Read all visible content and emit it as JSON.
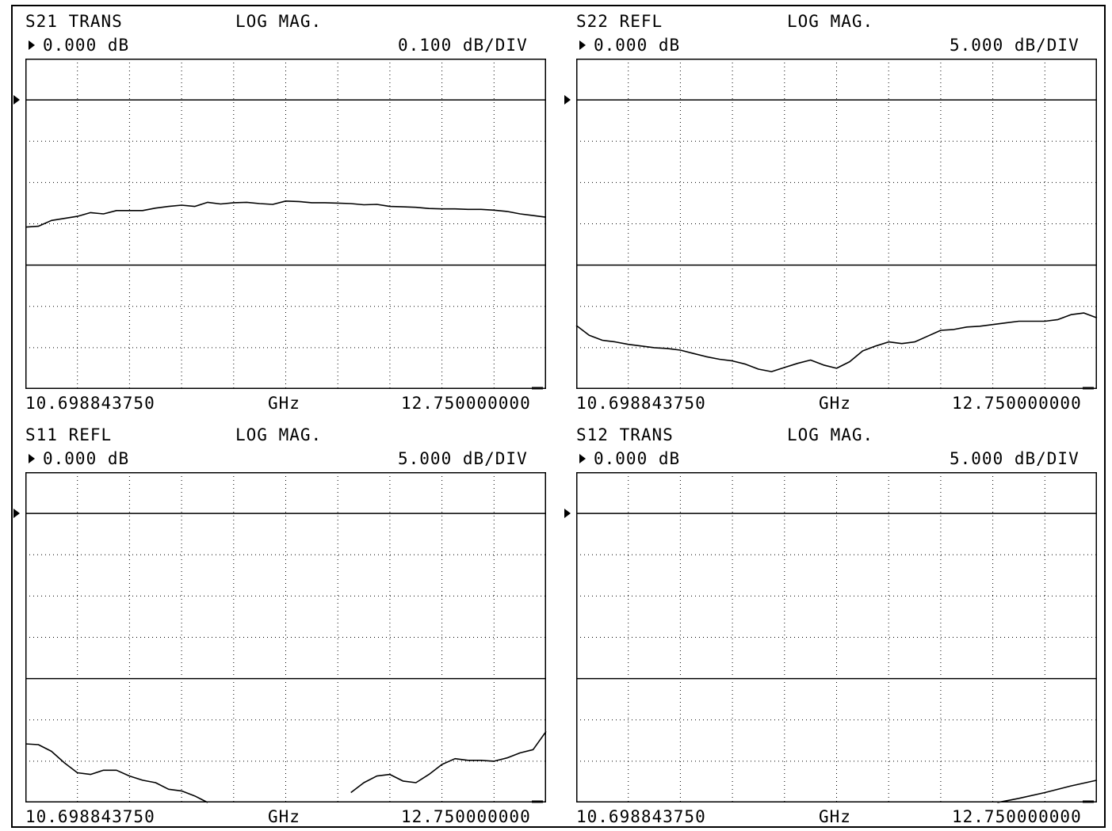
{
  "colors": {
    "trace": "#000000",
    "background": "#ffffff",
    "grid": "#000000"
  },
  "panels": [
    {
      "param": "S21 TRANS",
      "format": "LOG MAG.",
      "ref_value": "0.000 dB",
      "scale": "0.100 dB/DIV",
      "start": "10.698843750",
      "unit": "GHz",
      "stop": "12.750000000"
    },
    {
      "param": "S22 REFL",
      "format": "LOG MAG.",
      "ref_value": "0.000 dB",
      "scale": "5.000 dB/DIV",
      "start": "10.698843750",
      "unit": "GHz",
      "stop": "12.750000000"
    },
    {
      "param": "S11 REFL",
      "format": "LOG MAG.",
      "ref_value": "0.000 dB",
      "scale": "5.000 dB/DIV",
      "start": "10.698843750",
      "unit": "GHz",
      "stop": "12.750000000"
    },
    {
      "param": "S12 TRANS",
      "format": "LOG MAG.",
      "ref_value": "0.000 dB",
      "scale": "5.000 dB/DIV",
      "start": "10.698843750",
      "unit": "GHz",
      "stop": "12.750000000"
    }
  ],
  "chart_data": [
    {
      "type": "line",
      "title": "S21 TRANS LOG MAG.",
      "xlabel": "GHz",
      "ylabel": "",
      "xlim": [
        10.69884375,
        12.75
      ],
      "ylim": [
        -0.7,
        0.1
      ],
      "grid": true,
      "x": [
        10.6988,
        10.7502,
        10.8015,
        10.8528,
        10.9041,
        10.9554,
        11.0066,
        11.0579,
        11.1092,
        11.1605,
        11.2117,
        11.263,
        11.3143,
        11.3656,
        11.4169,
        11.4682,
        11.5194,
        11.5707,
        11.622,
        11.6733,
        11.7245,
        11.7758,
        11.8271,
        11.8784,
        11.9297,
        11.981,
        12.0322,
        12.0835,
        12.1348,
        12.1861,
        12.2373,
        12.2886,
        12.3399,
        12.3912,
        12.4425,
        12.4938,
        12.545,
        12.5963,
        12.6476,
        12.6989,
        12.75
      ],
      "series": [
        {
          "values": [
            -0.308,
            -0.306,
            -0.292,
            -0.287,
            -0.282,
            -0.273,
            -0.276,
            -0.268,
            -0.268,
            -0.268,
            -0.262,
            -0.258,
            -0.255,
            -0.258,
            -0.248,
            -0.252,
            -0.249,
            -0.248,
            -0.251,
            -0.253,
            -0.245,
            -0.246,
            -0.249,
            -0.249,
            -0.25,
            -0.251,
            -0.254,
            -0.253,
            -0.258,
            -0.259,
            -0.26,
            -0.263,
            -0.264,
            -0.264,
            -0.265,
            -0.265,
            -0.267,
            -0.27,
            -0.276,
            -0.28,
            -0.284
          ]
        }
      ]
    },
    {
      "type": "line",
      "title": "S22 REFL LOG MAG.",
      "xlabel": "GHz",
      "ylabel": "",
      "xlim": [
        10.69884375,
        12.75
      ],
      "ylim": [
        -35,
        5
      ],
      "grid": true,
      "x": [
        10.6988,
        10.7502,
        10.8015,
        10.8528,
        10.9041,
        10.9554,
        11.0066,
        11.0579,
        11.1092,
        11.1605,
        11.2117,
        11.263,
        11.3143,
        11.3656,
        11.4169,
        11.4682,
        11.5194,
        11.5707,
        11.622,
        11.6733,
        11.7245,
        11.7758,
        11.8271,
        11.8784,
        11.9297,
        11.981,
        12.0322,
        12.0835,
        12.1348,
        12.1861,
        12.2373,
        12.2886,
        12.3399,
        12.3912,
        12.4425,
        12.4938,
        12.545,
        12.5963,
        12.6476,
        12.6989,
        12.75
      ],
      "series": [
        {
          "values": [
            -27.3,
            -28.5,
            -29.1,
            -29.3,
            -29.6,
            -29.8,
            -30.0,
            -30.1,
            -30.3,
            -30.7,
            -31.1,
            -31.4,
            -31.6,
            -32.0,
            -32.6,
            -32.9,
            -32.4,
            -31.9,
            -31.5,
            -32.1,
            -32.5,
            -31.7,
            -30.4,
            -29.8,
            -29.3,
            -29.5,
            -29.3,
            -28.6,
            -27.9,
            -27.8,
            -27.5,
            -27.4,
            -27.2,
            -27.0,
            -26.8,
            -26.8,
            -26.8,
            -26.6,
            -26.0,
            -25.8,
            -26.4
          ]
        }
      ]
    },
    {
      "type": "line",
      "title": "S11 REFL LOG MAG.",
      "xlabel": "GHz",
      "ylabel": "",
      "xlim": [
        10.69884375,
        12.75
      ],
      "ylim": [
        -35,
        5
      ],
      "grid": true,
      "x": [
        10.6988,
        10.7502,
        10.8015,
        10.8528,
        10.9041,
        10.9554,
        11.0066,
        11.0579,
        11.1092,
        11.1605,
        11.2117,
        11.263,
        11.3143,
        11.3656,
        11.4169,
        11.4682,
        11.5194,
        11.5707,
        11.622,
        11.6733,
        11.7245,
        11.7758,
        11.8271,
        11.8784,
        11.9297,
        11.981,
        12.0322,
        12.0835,
        12.1348,
        12.1861,
        12.2373,
        12.2886,
        12.3399,
        12.3912,
        12.4425,
        12.4938,
        12.545,
        12.5963,
        12.6476,
        12.6989,
        12.75
      ],
      "series": [
        {
          "values": [
            -27.9,
            -28.0,
            -28.8,
            -30.2,
            -31.4,
            -31.6,
            -31.1,
            -31.1,
            -31.8,
            -32.3,
            -32.6,
            -33.4,
            -33.6,
            -34.2,
            -35.0,
            null,
            null,
            null,
            null,
            null,
            null,
            null,
            null,
            null,
            null,
            -33.8,
            -32.6,
            -31.8,
            -31.6,
            -32.4,
            -32.6,
            -31.6,
            -30.4,
            -29.7,
            -29.9,
            -29.9,
            -30.0,
            -29.6,
            -29.0,
            -28.6,
            -26.4
          ]
        }
      ]
    },
    {
      "type": "line",
      "title": "S12 TRANS LOG MAG.",
      "xlabel": "GHz",
      "ylabel": "",
      "xlim": [
        10.69884375,
        12.75
      ],
      "ylim": [
        -35,
        5
      ],
      "grid": true,
      "x": [
        12.358,
        12.4425,
        12.545,
        12.6476,
        12.75
      ],
      "series": [
        {
          "values": [
            -35.0,
            -34.5,
            -33.8,
            -33.0,
            -32.3
          ]
        }
      ]
    }
  ]
}
